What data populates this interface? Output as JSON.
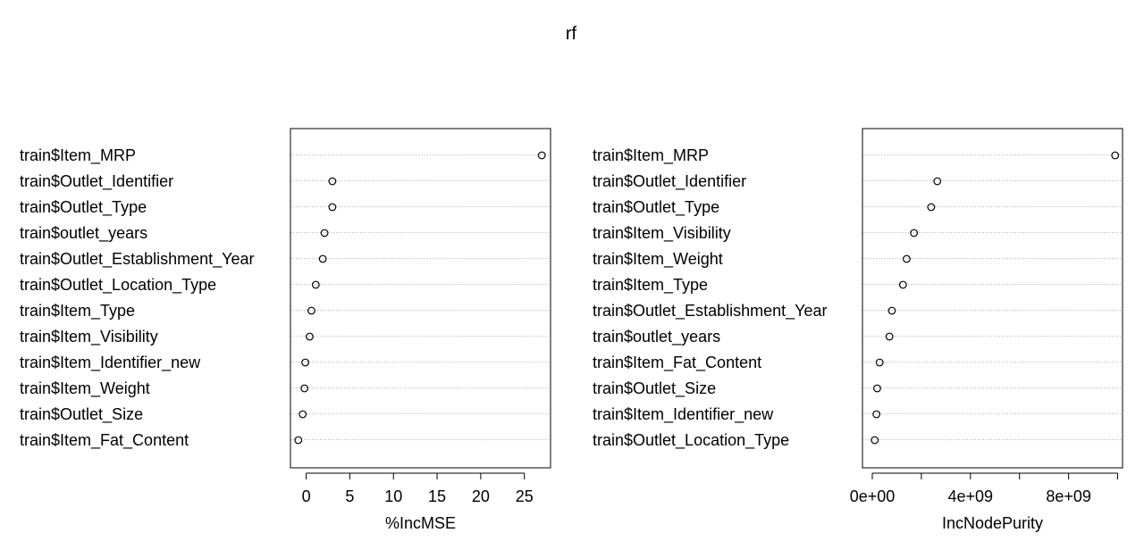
{
  "title": "rf",
  "chart_data": [
    {
      "type": "scatter",
      "subtype": "dotchart",
      "xlabel": "%IncMSE",
      "ylabel": "",
      "xlim": [
        -1.8,
        28
      ],
      "xticks": [
        0,
        5,
        10,
        15,
        20,
        25
      ],
      "xtick_labels": [
        "0",
        "5",
        "10",
        "15",
        "20",
        "25"
      ],
      "grid": "dotted horizontal guide lines",
      "categories": [
        "train$Item_MRP",
        "train$Outlet_Identifier",
        "train$Outlet_Type",
        "train$outlet_years",
        "train$Outlet_Establishment_Year",
        "train$Outlet_Location_Type",
        "train$Item_Type",
        "train$Item_Visibility",
        "train$Item_Identifier_new",
        "train$Item_Weight",
        "train$Outlet_Size",
        "train$Item_Fat_Content"
      ],
      "values": [
        27.0,
        3.0,
        3.0,
        2.1,
        1.9,
        1.1,
        0.6,
        0.4,
        -0.1,
        -0.2,
        -0.4,
        -0.9
      ]
    },
    {
      "type": "scatter",
      "subtype": "dotchart",
      "xlabel": "IncNodePurity",
      "ylabel": "",
      "xlim": [
        -400000000.0,
        10200000000.0
      ],
      "xticks": [
        0,
        2000000000.0,
        4000000000.0,
        6000000000.0,
        8000000000.0,
        10000000000.0
      ],
      "xtick_labels": [
        "0e+00",
        "",
        "4e+09",
        "",
        "8e+09",
        ""
      ],
      "grid": "dotted horizontal guide lines",
      "categories": [
        "train$Item_MRP",
        "train$Outlet_Identifier",
        "train$Outlet_Type",
        "train$Item_Visibility",
        "train$Item_Weight",
        "train$Item_Type",
        "train$Outlet_Establishment_Year",
        "train$outlet_years",
        "train$Item_Fat_Content",
        "train$Outlet_Size",
        "train$Item_Identifier_new",
        "train$Outlet_Location_Type"
      ],
      "values": [
        9900000000.0,
        2650000000.0,
        2400000000.0,
        1700000000.0,
        1400000000.0,
        1250000000.0,
        800000000.0,
        700000000.0,
        300000000.0,
        200000000.0,
        170000000.0,
        100000000.0
      ]
    }
  ]
}
